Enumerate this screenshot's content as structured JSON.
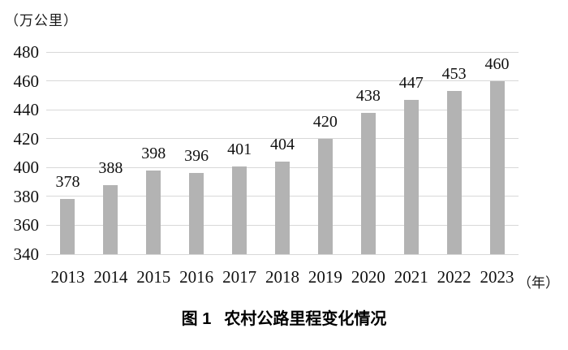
{
  "figure": {
    "unit_label": "（万公里）",
    "x_unit_label": "（年）",
    "caption": {
      "prefix": "图 1",
      "title": "农村公路里程变化情况"
    }
  },
  "chart_data": {
    "type": "bar",
    "title": "图1 农村公路里程变化情况",
    "ylabel": "（万公里）",
    "xlabel": "（年）",
    "categories": [
      "2013",
      "2014",
      "2015",
      "2016",
      "2017",
      "2018",
      "2019",
      "2020",
      "2021",
      "2022",
      "2023"
    ],
    "values": [
      378,
      388,
      398,
      396,
      401,
      404,
      420,
      438,
      447,
      453,
      460
    ],
    "ylim": [
      340,
      480
    ],
    "yticks": [
      340,
      360,
      380,
      400,
      420,
      440,
      460,
      480
    ],
    "grid": true,
    "legend": "none",
    "bar_color": "#b3b3b3",
    "grid_color": "#d8d8d8",
    "text_color": "#111111"
  }
}
